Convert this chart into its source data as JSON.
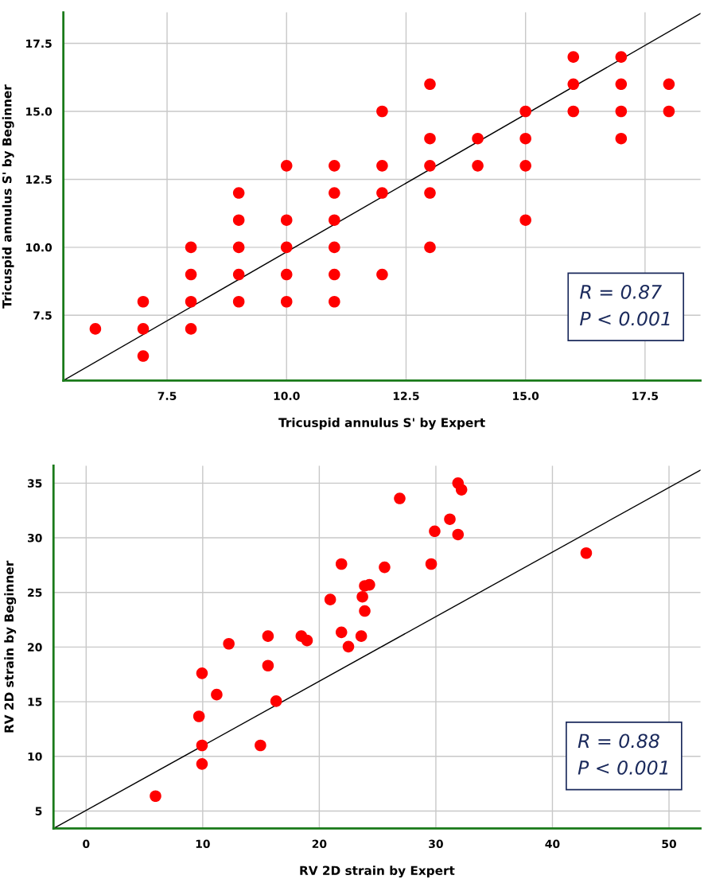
{
  "chart_data": [
    {
      "type": "scatter",
      "xlabel": "Tricuspid annulus S' by Expert",
      "ylabel": "Tricuspid annulus S' by Beginner",
      "xlim": [
        5.33,
        18.66
      ],
      "ylim": [
        5.1,
        18.64
      ],
      "xticks": [
        7.5,
        {
          "value": 10,
          "label": "10.0"
        },
        12.5,
        {
          "value": 15,
          "label": "15.0"
        },
        17.5
      ],
      "yticks": [
        7.5,
        {
          "value": 10,
          "label": "10.0"
        },
        12.5,
        {
          "value": 15,
          "label": "15.0"
        },
        17.5
      ],
      "grid": true,
      "annotations": [
        "R = 0.87\nP < 0.001"
      ],
      "series": [
        {
          "marker": "circle",
          "color": "#ff0000",
          "x": [
            6,
            7,
            7,
            7,
            8,
            8,
            8,
            8,
            9,
            9,
            9,
            9,
            9,
            10,
            10,
            10,
            10,
            10,
            11,
            11,
            11,
            11,
            11,
            11,
            12,
            12,
            12,
            12,
            13,
            13,
            13,
            13,
            13,
            14,
            14,
            15,
            15,
            15,
            15,
            16,
            16,
            16,
            17,
            17,
            17,
            17,
            18,
            18
          ],
          "values": [
            7,
            8,
            7,
            6,
            10,
            9,
            8,
            7,
            12,
            11,
            10,
            9,
            8,
            13,
            11,
            10,
            9,
            8,
            13,
            12,
            11,
            10,
            9,
            8,
            15,
            13,
            12,
            9,
            16,
            14,
            13,
            12,
            10,
            14,
            13,
            15,
            14,
            13,
            11,
            17,
            16,
            15,
            17,
            16,
            15,
            14,
            16,
            15
          ]
        },
        {
          "type": "line",
          "marker": "none",
          "color": "#000000",
          "x": [
            5.33,
            18.66
          ],
          "values": [
            5.1,
            18.6
          ]
        }
      ]
    },
    {
      "type": "scatter",
      "xlabel": "RV 2D strain by Expert",
      "ylabel": "RV 2D strain by Beginner",
      "xlim": [
        -2.8,
        52.7
      ],
      "ylim": [
        3.4,
        36.6
      ],
      "xticks": [
        0,
        10,
        20,
        30,
        40,
        50
      ],
      "yticks": [
        5,
        10,
        15,
        20,
        25,
        30,
        35
      ],
      "grid": true,
      "annotations": [
        "R = 0.88\nP < 0.001"
      ],
      "series": [
        {
          "marker": "circle",
          "color": "#ff0000",
          "x": [
            5.95,
            9.68,
            9.94,
            9.94,
            9.94,
            11.2,
            12.24,
            14.95,
            15.6,
            15.6,
            16.3,
            18.46,
            18.95,
            20.94,
            21.9,
            21.9,
            22.5,
            23.6,
            23.7,
            23.9,
            23.9,
            24.3,
            25.6,
            26.9,
            29.6,
            29.9,
            31.2,
            31.9,
            31.9,
            32.2,
            42.9
          ],
          "values": [
            6.36,
            13.66,
            17.6,
            11.0,
            9.3,
            15.65,
            20.3,
            11.0,
            21.0,
            18.3,
            15.05,
            21.0,
            20.6,
            24.35,
            27.6,
            21.35,
            20.04,
            21.0,
            24.6,
            25.6,
            23.3,
            25.7,
            27.3,
            33.6,
            27.6,
            30.6,
            31.7,
            30.3,
            35.0,
            34.4,
            28.6
          ]
        },
        {
          "type": "line",
          "marker": "none",
          "color": "#000000",
          "x": [
            -2.8,
            52.7
          ],
          "values": [
            3.4,
            36.2
          ]
        }
      ]
    }
  ]
}
